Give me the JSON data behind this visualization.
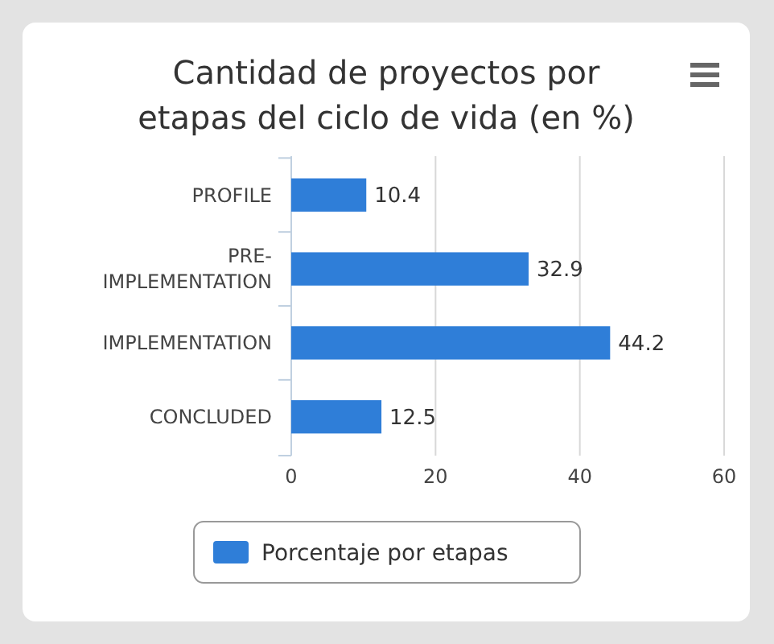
{
  "chart_data": {
    "type": "bar",
    "orientation": "horizontal",
    "title": "Cantidad de proyectos por etapas del ciclo de vida (en %)",
    "categories": [
      "PROFILE",
      "PRE-IMPLEMENTATION",
      "IMPLEMENTATION",
      "CONCLUDED"
    ],
    "series": [
      {
        "name": "Porcentaje por etapas",
        "color": "#2f7ed8",
        "values": [
          10.4,
          32.9,
          44.2,
          12.5
        ]
      }
    ],
    "xlim": [
      0,
      60
    ],
    "xticks": [
      0,
      20,
      40,
      60
    ],
    "grid": "x",
    "legend": "bottom",
    "data_labels": true
  }
}
